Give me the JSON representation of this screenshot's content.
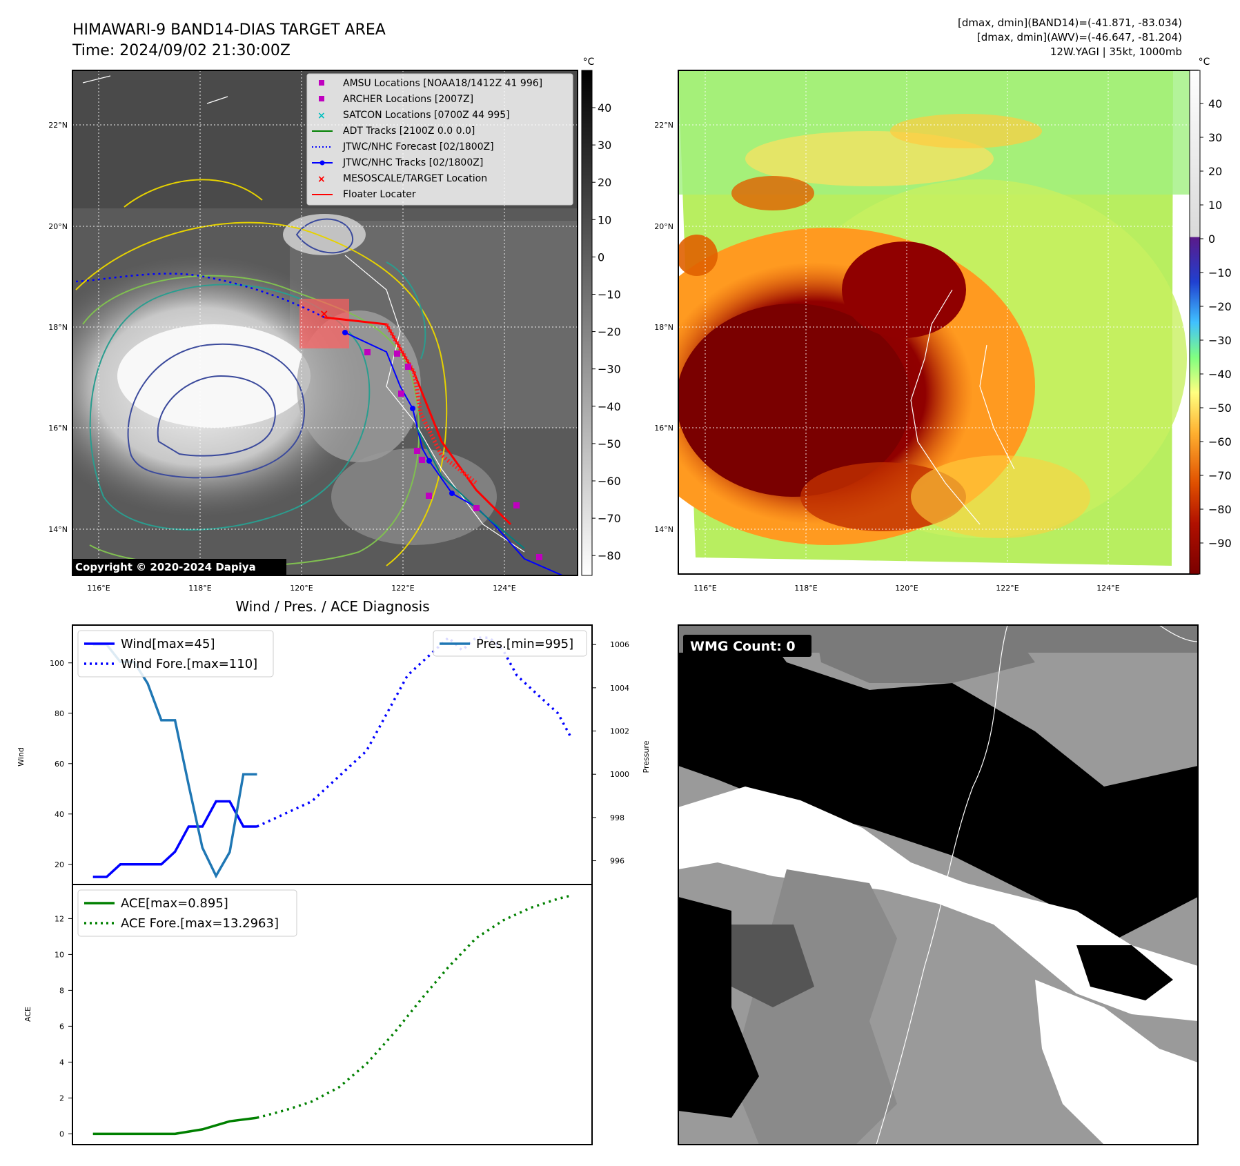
{
  "figure": {
    "title_line1": "HIMAWARI-9 BAND14-DIAS TARGET AREA",
    "title_line2": "Time: 2024/09/02 21:30:00Z",
    "info_line1": "[dmax, dmin](BAND14)=(-41.871, -83.034)",
    "info_line2": "[dmax, dmin](AWV)=(-46.647, -81.204)",
    "info_line3": "12W.YAGI | 35kt, 1000mb",
    "copyright": "Copyright © 2020-2024 Dapiya"
  },
  "map": {
    "lat_labels": [
      "22°N",
      "20°N",
      "18°N",
      "16°N",
      "14°N"
    ],
    "lon_labels": [
      "116°E",
      "118°E",
      "120°E",
      "122°E",
      "124°E"
    ],
    "legend": [
      {
        "label": "AMSU Locations [NOAA18/1412Z 41 996]",
        "marker": "square",
        "color": "#bf00bf"
      },
      {
        "label": "ARCHER Locations [2007Z]",
        "marker": "square",
        "color": "#bf00bf"
      },
      {
        "label": "SATCON Locations [0700Z 44 995]",
        "marker": "x",
        "color": "#00bfbf"
      },
      {
        "label": "ADT Tracks [2100Z 0.0 0.0]",
        "marker": "line",
        "color": "#008000"
      },
      {
        "label": "JTWC/NHC Forecast [02/1800Z]",
        "marker": "dotted",
        "color": "#0000ff"
      },
      {
        "label": "JTWC/NHC Tracks [02/1800Z]",
        "marker": "line-dot",
        "color": "#0000ff"
      },
      {
        "label": "MESOSCALE/TARGET Location",
        "marker": "x",
        "color": "#ff0000"
      },
      {
        "label": "Floater Locater",
        "marker": "line",
        "color": "#ff0000"
      }
    ]
  },
  "colorbar_gray": {
    "unit": "°C",
    "ticks": [
      "40",
      "30",
      "20",
      "10",
      "0",
      "−10",
      "−20",
      "−30",
      "−40",
      "−50",
      "−60",
      "−70",
      "−80"
    ]
  },
  "colorbar_color": {
    "unit": "°C",
    "ticks": [
      "40",
      "30",
      "20",
      "10",
      "0",
      "−10",
      "−20",
      "−30",
      "−40",
      "−50",
      "−60",
      "−70",
      "−80",
      "−90"
    ]
  },
  "wmg": {
    "label": "WMG Count: 0"
  },
  "chart_data": [
    {
      "type": "line",
      "title": "Wind / Pres. / ACE Diagnosis",
      "ylabel": "Wind",
      "ylabel_right": "Pressure",
      "ylim": [
        12,
        115
      ],
      "ylim_right": [
        994.9,
        1006.9
      ],
      "yticks": [
        20,
        40,
        60,
        80,
        100
      ],
      "yticks_right": [
        996,
        998,
        1000,
        1002,
        1004,
        1006
      ],
      "x": [
        0,
        1,
        2,
        3,
        4,
        5,
        6,
        7,
        8,
        9,
        10,
        11,
        12,
        13,
        14,
        15,
        16,
        17,
        18,
        19,
        20,
        21,
        22,
        23,
        24,
        25,
        26,
        27,
        28,
        29,
        30,
        31,
        32,
        33,
        34,
        35
      ],
      "legend": [
        "Wind[max=45]",
        "Wind Fore.[max=110]",
        "Pres.[min=995]"
      ],
      "series": [
        {
          "name": "Wind[max=45]",
          "axis": "left",
          "style": "solid",
          "color": "#0000ff",
          "x": [
            0,
            1,
            2,
            3,
            4,
            5,
            6,
            7,
            8,
            9,
            10,
            11,
            12
          ],
          "values": [
            15,
            15,
            20,
            20,
            20,
            20,
            25,
            35,
            35,
            45,
            45,
            35,
            35
          ]
        },
        {
          "name": "Wind Fore.[max=110]",
          "axis": "left",
          "style": "dotted",
          "color": "#0000ff",
          "x": [
            12,
            14,
            16,
            17,
            18,
            19,
            20,
            21,
            22,
            23,
            24,
            25,
            26,
            27,
            28,
            29,
            30,
            31,
            32,
            33,
            34,
            35
          ],
          "values": [
            35,
            40,
            45,
            50,
            55,
            60,
            65,
            75,
            85,
            95,
            100,
            105,
            110,
            105,
            110,
            110,
            105,
            95,
            90,
            85,
            80,
            70
          ]
        },
        {
          "name": "Pres.[min=995]",
          "axis": "right",
          "style": "solid",
          "color": "#1f77b4",
          "x": [
            0,
            1,
            2,
            3,
            4,
            5,
            6,
            7,
            8,
            9,
            10,
            11,
            12
          ],
          "values": [
            1006,
            1006,
            1005.2,
            1005.2,
            1004.2,
            1002.5,
            1002.5,
            999.5,
            996.6,
            995.3,
            996.4,
            1000,
            1000
          ]
        }
      ]
    },
    {
      "type": "line",
      "ylabel": "ACE",
      "ylim": [
        -0.6,
        13.9
      ],
      "yticks": [
        0,
        2,
        4,
        6,
        8,
        10,
        12
      ],
      "legend": [
        "ACE[max=0.895]",
        "ACE Fore.[max=13.2963]"
      ],
      "series": [
        {
          "name": "ACE[max=0.895]",
          "style": "solid",
          "color": "#008000",
          "x": [
            0,
            2,
            4,
            6,
            8,
            10,
            12
          ],
          "values": [
            0,
            0,
            0,
            0,
            0.25,
            0.7,
            0.895
          ]
        },
        {
          "name": "ACE Fore.[max=13.2963]",
          "style": "dotted",
          "color": "#008000",
          "x": [
            12,
            14,
            16,
            18,
            20,
            22,
            24,
            26,
            28,
            30,
            32,
            34,
            35
          ],
          "values": [
            0.895,
            1.3,
            1.8,
            2.6,
            3.9,
            5.6,
            7.5,
            9.3,
            10.9,
            11.9,
            12.6,
            13.1,
            13.2963
          ]
        }
      ]
    }
  ]
}
